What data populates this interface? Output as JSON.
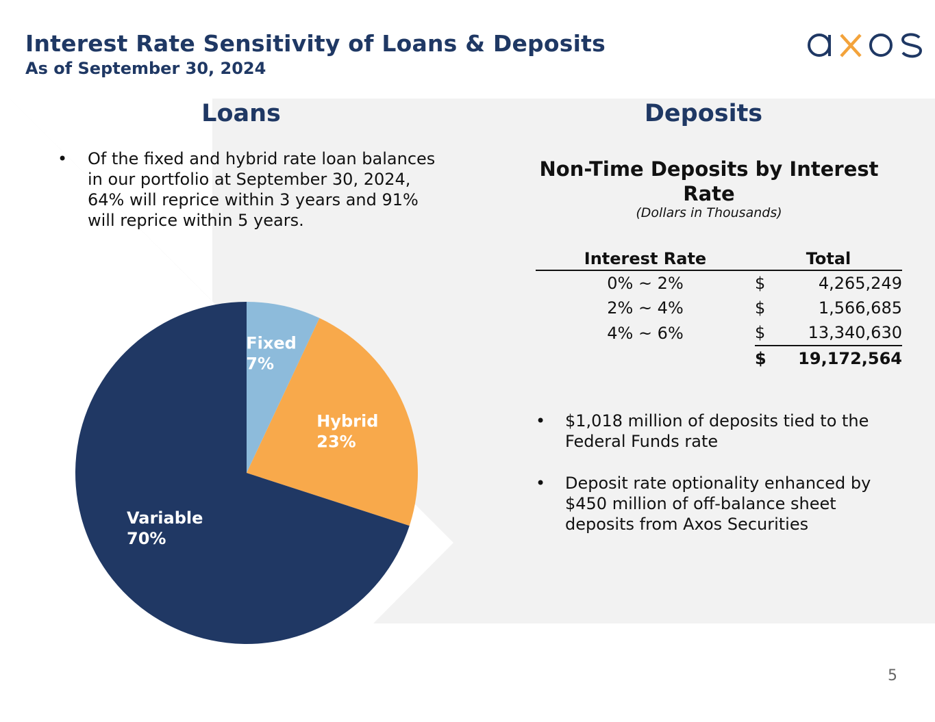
{
  "header": {
    "title": "Interest Rate Sensitivity of Loans & Deposits",
    "subtitle": "As of September 30, 2024",
    "logo_text": "axos"
  },
  "loans": {
    "heading": "Loans",
    "bullet": "Of the fixed and hybrid rate loan balances in our portfolio at September 30, 2024, 64% will reprice within 3 years and 91% will reprice within 5 years."
  },
  "deposits": {
    "heading": "Deposits",
    "table_title": "Non-Time Deposits by Interest Rate",
    "table_note": "(Dollars in Thousands)",
    "columns": [
      "Interest Rate",
      "Total"
    ],
    "rows": [
      {
        "rate": "0% ~ 2%",
        "currency": "$",
        "amount": "4,265,249"
      },
      {
        "rate": "2% ~ 4%",
        "currency": "$",
        "amount": "1,566,685"
      },
      {
        "rate": "4% ~ 6%",
        "currency": "$",
        "amount": "13,340,630"
      }
    ],
    "total": {
      "currency": "$",
      "amount": "19,172,564"
    },
    "bullets": [
      "$1,018 million of deposits tied to the Federal Funds rate",
      "Deposit rate optionality enhanced by $450 million of off-balance sheet deposits from Axos Securities"
    ]
  },
  "chart_data": {
    "type": "pie",
    "slices": [
      {
        "label": "Fixed",
        "value": 7,
        "display": "7%",
        "color": "#8dbbdb"
      },
      {
        "label": "Hybrid",
        "value": 23,
        "display": "23%",
        "color": "#f8a94b"
      },
      {
        "label": "Variable",
        "value": 70,
        "display": "70%",
        "color": "#203864"
      }
    ],
    "start": "12 o'clock, clockwise"
  },
  "colors": {
    "navy": "#1f3864",
    "panel": "#f2f2f2",
    "logo_accent": "#f3a33b"
  },
  "page_number": "5"
}
